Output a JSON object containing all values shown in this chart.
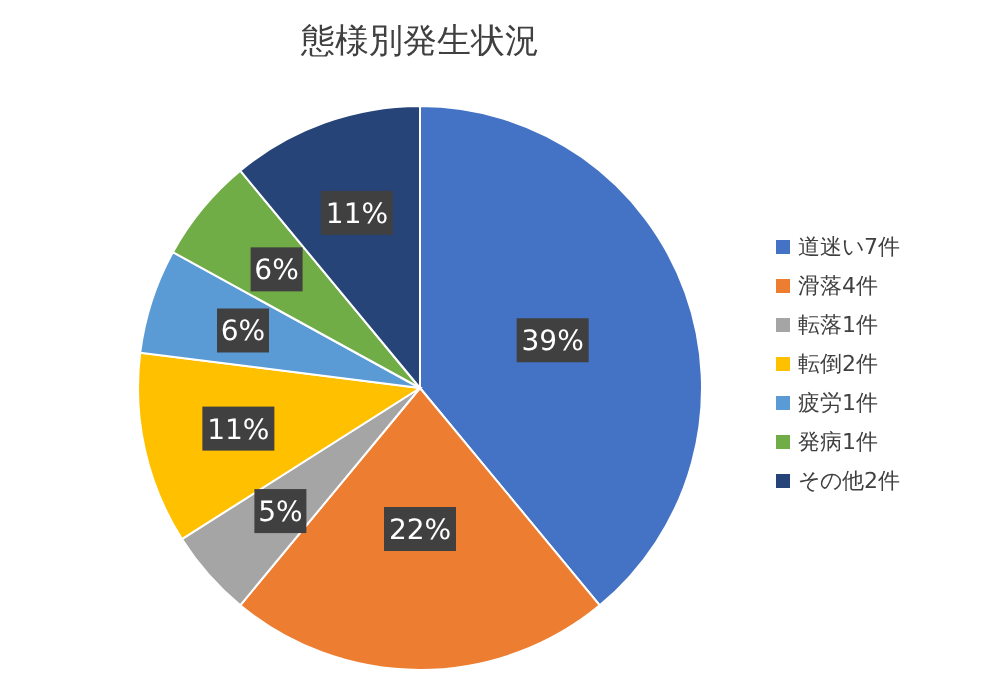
{
  "chart_data": {
    "type": "pie",
    "title": "態様別発生状況",
    "categories": [
      "道迷い7件",
      "滑落4件",
      "転落1件",
      "転倒2件",
      "疲労1件",
      "発病1件",
      "その他2件"
    ],
    "values": [
      39,
      22,
      5,
      11,
      6,
      6,
      11
    ],
    "colors": [
      "#4472c4",
      "#ed7d31",
      "#a5a5a5",
      "#ffc000",
      "#5b9bd5",
      "#70ad47",
      "#264478"
    ],
    "value_labels": [
      "39%",
      "22%",
      "5%",
      "11%",
      "6%",
      "6%",
      "11%"
    ],
    "legend": "right"
  }
}
